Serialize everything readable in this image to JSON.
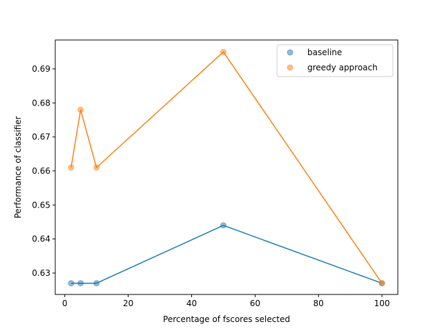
{
  "chart_data": {
    "type": "scatter",
    "title": "",
    "xlabel": "Percentage of fscores selected",
    "ylabel": "Performance of classifier",
    "xlim": [
      -3,
      105
    ],
    "ylim": [
      0.6237,
      0.6985
    ],
    "x_ticks": [
      0,
      20,
      40,
      60,
      80,
      100
    ],
    "y_ticks": [
      0.63,
      0.64,
      0.65,
      0.66,
      0.67,
      0.68,
      0.69
    ],
    "x_tick_labels": [
      "0",
      "20",
      "40",
      "60",
      "80",
      "100"
    ],
    "y_tick_labels": [
      "0.63",
      "0.64",
      "0.65",
      "0.66",
      "0.67",
      "0.68",
      "0.69"
    ],
    "grid": false,
    "legend_position": "top-right",
    "series": [
      {
        "name": "baseline",
        "color": "#1f77b4",
        "x": [
          2,
          5,
          10,
          50,
          100
        ],
        "y": [
          0.627,
          0.627,
          0.627,
          0.644,
          0.627
        ]
      },
      {
        "name": "greedy approach",
        "color": "#ff7f0e",
        "x": [
          2,
          5,
          10,
          50,
          100
        ],
        "y": [
          0.661,
          0.678,
          0.661,
          0.695,
          0.627
        ]
      }
    ]
  }
}
